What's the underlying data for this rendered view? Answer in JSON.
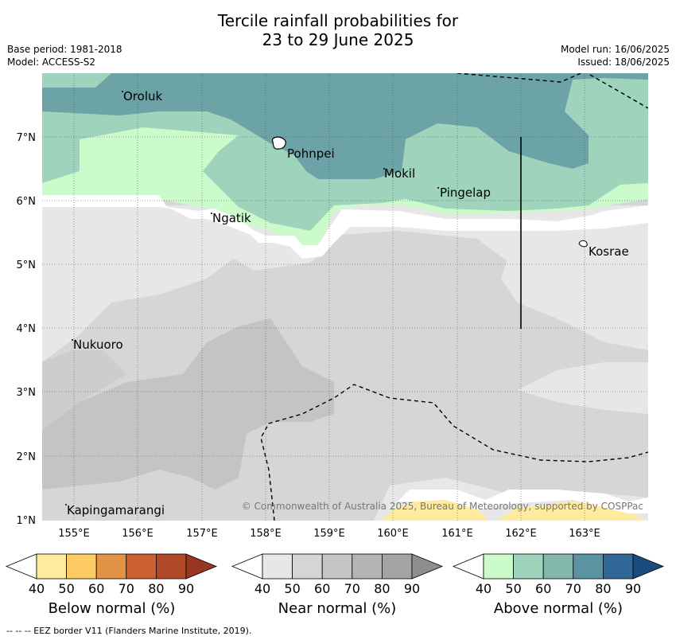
{
  "header": {
    "title_line1": "Tercile rainfall probabilities for",
    "title_line2": "23 to 29 June 2025",
    "base_period": "Base period: 1981-2018",
    "model": "Model: ACCESS-S2",
    "model_run": "Model run: 16/06/2025",
    "issued": "Issued: 18/06/2025"
  },
  "map": {
    "lat_labels": [
      "7°N",
      "6°N",
      "5°N",
      "4°N",
      "3°N",
      "2°N",
      "1°N"
    ],
    "lon_labels": [
      "155°E",
      "156°E",
      "157°E",
      "158°E",
      "159°E",
      "160°E",
      "161°E",
      "162°E",
      "163°E"
    ],
    "places": [
      "Oroluk",
      "Pohnpei",
      "Mokil",
      "Pingelap",
      "Ngatik",
      "Kosrae",
      "Nukuoro",
      "Kapingamarangi"
    ],
    "copyright": "© Commonwealth of Australia 2025, Bureau of Meteorology, supported by COSPPac"
  },
  "colorbars": [
    {
      "title": "Below normal (%)",
      "ticks": [
        "40",
        "50",
        "60",
        "70",
        "80",
        "90"
      ],
      "colors": [
        "#ffffff",
        "#feeb9e",
        "#fdca63",
        "#e09444",
        "#cc6030",
        "#b04828",
        "#983620"
      ]
    },
    {
      "title": "Near normal (%)",
      "ticks": [
        "40",
        "50",
        "60",
        "70",
        "80",
        "90"
      ],
      "colors": [
        "#ffffff",
        "#e7e7e7",
        "#d5d5d5",
        "#c5c5c5",
        "#b4b4b4",
        "#a4a4a4",
        "#8e8e8e"
      ]
    },
    {
      "title": "Above normal (%)",
      "ticks": [
        "40",
        "50",
        "60",
        "70",
        "80",
        "90"
      ],
      "colors": [
        "#ffffff",
        "#cbfbcb",
        "#a0d3bb",
        "#84b8ad",
        "#5a93a2",
        "#306898",
        "#184c80"
      ]
    }
  ],
  "footer": "--  --  -- EEZ border V11 (Flanders Marine Institute, 2019)."
}
